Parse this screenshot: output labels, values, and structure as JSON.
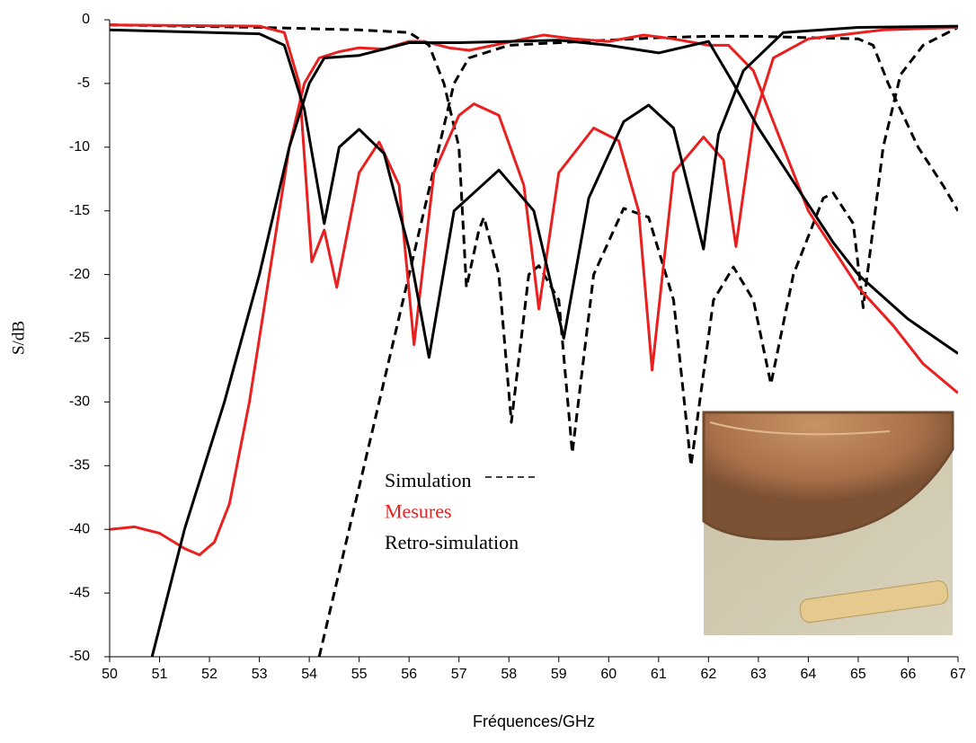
{
  "chart_data": {
    "type": "line",
    "xlabel": "Fréquences/GHz",
    "ylabel": "S/dB",
    "xlim": [
      50,
      67
    ],
    "xticks": [
      50,
      51,
      52,
      53,
      54,
      55,
      56,
      57,
      58,
      59,
      60,
      61,
      62,
      63,
      64,
      65,
      66,
      67
    ],
    "ylim": [
      -50,
      0
    ],
    "yticks": [
      -50,
      -45,
      -40,
      -35,
      -30,
      -25,
      -20,
      -15,
      -10,
      -5,
      0
    ],
    "series": [
      {
        "name": "Simulation",
        "color": "#000000",
        "dashed": true,
        "curves": [
          {
            "x": [
              54.2,
              54.8,
              55.4,
              56.0,
              56.6,
              56.9,
              57.2,
              58,
              59,
              60,
              61,
              62,
              63,
              64,
              65,
              65.3,
              65.6,
              66.2,
              66.7,
              67
            ],
            "values": [
              -50,
              -40,
              -30,
              -20,
              -10,
              -5,
              -3,
              -2,
              -1.8,
              -1.6,
              -1.4,
              -1.3,
              -1.3,
              -1.4,
              -1.5,
              -2,
              -5,
              -10,
              -13,
              -15
            ]
          },
          {
            "x": [
              50,
              53,
              55,
              56,
              56.4,
              56.7,
              57,
              57.15,
              57.4,
              57.5,
              57.8,
              58.05,
              58.4,
              58.6,
              59.0,
              59.27,
              59.7,
              60.3,
              60.8,
              61.3,
              61.65,
              62.1,
              62.5,
              62.9,
              63.25,
              63.7,
              64.3,
              64.5,
              64.9,
              65.1,
              65.5,
              65.85,
              66.3,
              66.8,
              67
            ],
            "values": [
              -0.4,
              -0.6,
              -0.8,
              -1,
              -2,
              -5,
              -10,
              -21,
              -16.5,
              -15.5,
              -20,
              -31.6,
              -20,
              -19.3,
              -22,
              -34,
              -20,
              -14.8,
              -15.5,
              -22,
              -35,
              -22,
              -19.4,
              -22,
              -28.6,
              -20,
              -14,
              -13.6,
              -16,
              -22.6,
              -10,
              -4.3,
              -2,
              -1,
              -0.6
            ]
          }
        ]
      },
      {
        "name": "Mesures",
        "color": "#e8201f",
        "dashed": false,
        "curves": [
          {
            "x": [
              50,
              50.5,
              51,
              51.5,
              51.8,
              52.1,
              52.4,
              52.8,
              53.2,
              53.6,
              53.9,
              54.2,
              54.6,
              55,
              55.5,
              56,
              56.3,
              56.8,
              57.2,
              57.7,
              58.3,
              58.7,
              59.3,
              60,
              60.7,
              61.3,
              62,
              62.4,
              62.9,
              63.5,
              64,
              64.5,
              65,
              65.7,
              66.3,
              67
            ],
            "values": [
              -40,
              -39.8,
              -40.3,
              -41.5,
              -42,
              -41,
              -38,
              -30,
              -20,
              -10,
              -5,
              -3,
              -2.5,
              -2.2,
              -2.3,
              -1.7,
              -1.7,
              -2.2,
              -2.4,
              -2.0,
              -1.5,
              -1.2,
              -1.5,
              -1.7,
              -1.2,
              -1.5,
              -2.0,
              -2.0,
              -4,
              -10,
              -15,
              -18,
              -21,
              -24,
              -27,
              -29.3
            ]
          },
          {
            "x": [
              50,
              53,
              53.5,
              53.8,
              54.05,
              54.3,
              54.55,
              55,
              55.4,
              55.8,
              56.1,
              56.5,
              57,
              57.3,
              57.8,
              58.3,
              58.6,
              59,
              59.7,
              60.2,
              60.6,
              60.87,
              61.3,
              61.9,
              62.3,
              62.55,
              62.9,
              63.3,
              64,
              65.5,
              67
            ],
            "values": [
              -0.4,
              -0.5,
              -1,
              -5,
              -19,
              -16.5,
              -21,
              -12,
              -9.6,
              -13,
              -25.5,
              -12,
              -7.5,
              -6.6,
              -7.5,
              -13,
              -22.7,
              -12,
              -8.5,
              -9.5,
              -15,
              -27.5,
              -12,
              -9.2,
              -11,
              -17.8,
              -8,
              -3,
              -1.5,
              -0.8,
              -0.6
            ]
          }
        ]
      },
      {
        "name": "Retro-simulation",
        "color": "#000000",
        "dashed": false,
        "curves": [
          {
            "x": [
              50.85,
              51.5,
              52.3,
              53,
              53.6,
              54.0,
              54.3,
              55,
              56,
              57,
              58,
              59,
              60,
              61,
              62,
              62.5,
              63,
              63.5,
              64,
              64.5,
              65,
              66,
              67
            ],
            "values": [
              -50,
              -40,
              -30,
              -20,
              -10,
              -5,
              -3,
              -2.8,
              -1.8,
              -1.8,
              -1.7,
              -1.6,
              -2.0,
              -2.6,
              -1.7,
              -5,
              -8.5,
              -11.5,
              -14.5,
              -17.5,
              -20,
              -23.5,
              -26.2
            ]
          },
          {
            "x": [
              50,
              53,
              53.5,
              53.9,
              54.3,
              54.6,
              55,
              55.5,
              56,
              56.4,
              56.9,
              57.8,
              58.5,
              59.1,
              59.6,
              60.3,
              60.8,
              61.3,
              61.65,
              61.9,
              62.2,
              62.7,
              63.5,
              65,
              67
            ],
            "values": [
              -0.8,
              -1.1,
              -2,
              -7,
              -16,
              -10,
              -8.6,
              -10.5,
              -18,
              -26.5,
              -15,
              -11.8,
              -15,
              -25,
              -14,
              -8,
              -6.7,
              -8.5,
              -14,
              -18,
              -9,
              -4,
              -1,
              -0.6,
              -0.5
            ]
          }
        ]
      }
    ]
  }
}
